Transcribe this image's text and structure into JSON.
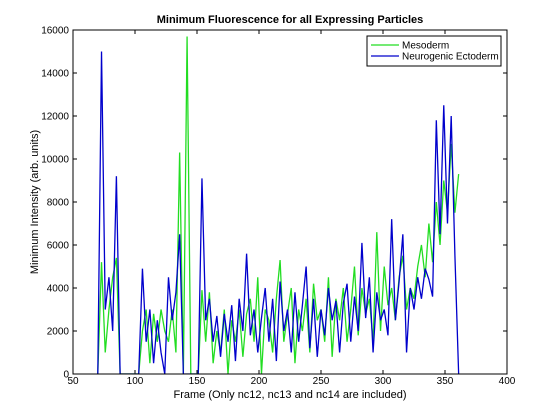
{
  "chart_data": {
    "type": "line",
    "title": "Minimum Fluorescence for all Expressing Particles",
    "xlabel": "Frame (Only nc12, nc13 and nc14 are included)",
    "ylabel": "Minimum Intensity (arb. units)",
    "x": [
      70,
      73,
      76,
      79,
      82,
      85,
      88,
      91,
      94,
      97,
      100,
      103,
      106,
      109,
      112,
      115,
      118,
      121,
      124,
      127,
      130,
      133,
      136,
      139,
      142,
      145,
      148,
      151,
      154,
      157,
      160,
      163,
      166,
      169,
      172,
      175,
      178,
      181,
      184,
      187,
      190,
      193,
      196,
      199,
      202,
      205,
      208,
      211,
      214,
      217,
      220,
      223,
      226,
      229,
      232,
      235,
      238,
      241,
      244,
      247,
      250,
      253,
      256,
      259,
      262,
      265,
      268,
      271,
      274,
      277,
      280,
      283,
      286,
      289,
      292,
      295,
      298,
      301,
      304,
      307,
      310,
      313,
      316,
      319,
      322,
      325,
      328,
      331,
      334,
      337,
      340,
      343,
      346,
      349,
      352,
      355,
      358,
      361
    ],
    "series": [
      {
        "name": "Mesoderm",
        "color": "#22dd22",
        "values": [
          0,
          5200,
          1000,
          3000,
          4500,
          5400,
          0,
          0,
          0,
          0,
          0,
          0,
          2000,
          3000,
          500,
          2800,
          1500,
          3000,
          2000,
          1500,
          3000,
          1000,
          10300,
          0,
          15700,
          0,
          0,
          0,
          3900,
          1500,
          3800,
          500,
          2000,
          1000,
          3000,
          0,
          2500,
          1500,
          3000,
          800,
          2800,
          3500,
          1500,
          4500,
          0,
          3000,
          2500,
          1000,
          3500,
          5300,
          1500,
          2800,
          4000,
          500,
          3000,
          2000,
          3500,
          1000,
          4200,
          2500,
          3000,
          1500,
          4500,
          800,
          3500,
          2500,
          4000,
          1500,
          3000,
          5000,
          1800,
          4000,
          2800,
          3500,
          1500,
          6600,
          2000,
          5000,
          3200,
          4000,
          2500,
          4500,
          5500,
          3000,
          4000,
          3500,
          5000,
          6000,
          4500,
          7000,
          5200,
          8000,
          6000,
          9000,
          7500,
          10700,
          7500,
          9300
        ]
      },
      {
        "name": "Neurogenic Ectoderm",
        "color": "#0000cc",
        "values": [
          0,
          15000,
          3000,
          4500,
          2000,
          9200,
          0,
          0,
          0,
          0,
          0,
          0,
          4900,
          1500,
          3000,
          500,
          2500,
          1000,
          0,
          4500,
          2500,
          3800,
          6500,
          0,
          0,
          0,
          0,
          0,
          9100,
          2500,
          3500,
          1500,
          2700,
          800,
          2800,
          1500,
          3200,
          600,
          3500,
          2000,
          5600,
          1800,
          3000,
          1000,
          2600,
          4000,
          1500,
          3500,
          600,
          4300,
          2000,
          3000,
          1000,
          3800,
          1500,
          3200,
          5000,
          1200,
          3500,
          800,
          3000,
          1800,
          4000,
          2500,
          3400,
          1000,
          3300,
          4200,
          1500,
          3600,
          2000,
          6100,
          2600,
          4500,
          1000,
          3800,
          2500,
          3000,
          1800,
          7200,
          2500,
          4300,
          6500,
          1000,
          4000,
          3000,
          4500,
          3500,
          4900,
          4400,
          3600,
          11800,
          6500,
          12500,
          7000,
          12000,
          5500,
          0
        ]
      }
    ],
    "xlim": [
      50,
      400
    ],
    "xticks": [
      50,
      100,
      150,
      200,
      250,
      300,
      350,
      400
    ],
    "ylim": [
      0,
      16000
    ],
    "yticks": [
      0,
      2000,
      4000,
      6000,
      8000,
      10000,
      12000,
      14000,
      16000
    ],
    "legend": "upper right"
  }
}
